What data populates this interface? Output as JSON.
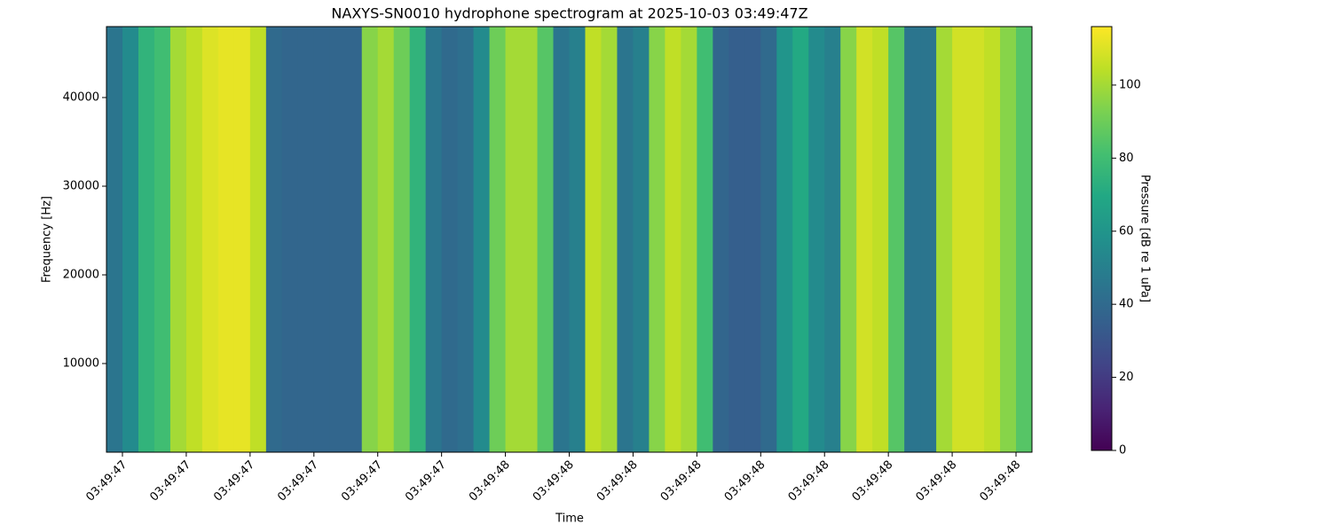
{
  "chart_data": {
    "type": "heatmap",
    "title": "NAXYS-SN0010 hydrophone spectrogram at 2025-10-03 03:49:47Z",
    "xlabel": "Time",
    "ylabel": "Frequency [Hz]",
    "colorbar_label": "Pressure [dB re 1 uPa]",
    "cmap": "viridis",
    "xedges": [
      47.375,
      47.4,
      47.425,
      47.45,
      47.475,
      47.5,
      47.525,
      47.55,
      47.575,
      47.6,
      47.625,
      47.65,
      47.675,
      47.7,
      47.725,
      47.75,
      47.775,
      47.8,
      47.825,
      47.85,
      47.875,
      47.9,
      47.925,
      47.95,
      47.975,
      48.0,
      48.025,
      48.05,
      48.075,
      48.1,
      48.125,
      48.15,
      48.175,
      48.2,
      48.225,
      48.25,
      48.275,
      48.3,
      48.325,
      48.35,
      48.375,
      48.4,
      48.425,
      48.45,
      48.475,
      48.5,
      48.525,
      48.55,
      48.575,
      48.6,
      48.625,
      48.65,
      48.675,
      48.7,
      48.725,
      48.75,
      48.775,
      48.8,
      48.825
    ],
    "yedges": [
      0,
      48000
    ],
    "z": [
      [
        45,
        55,
        75,
        80,
        100,
        105,
        110,
        112,
        112,
        105,
        40,
        38,
        38,
        38,
        38,
        38,
        95,
        100,
        90,
        75,
        45,
        40,
        42,
        55,
        90,
        100,
        100,
        85,
        45,
        50,
        105,
        100,
        45,
        50,
        95,
        105,
        100,
        80,
        38,
        35,
        35,
        40,
        60,
        70,
        55,
        50,
        95,
        108,
        105,
        85,
        45,
        45,
        100,
        108,
        108,
        105,
        95,
        85
      ]
    ],
    "xlim": [
      47.375,
      48.825
    ],
    "xticks": [
      {
        "value": 47.4,
        "label": "03:49:47"
      },
      {
        "value": 47.5,
        "label": "03:49:47"
      },
      {
        "value": 47.6,
        "label": "03:49:47"
      },
      {
        "value": 47.7,
        "label": "03:49:47"
      },
      {
        "value": 47.8,
        "label": "03:49:47"
      },
      {
        "value": 47.9,
        "label": "03:49:47"
      },
      {
        "value": 48.0,
        "label": "03:49:48"
      },
      {
        "value": 48.1,
        "label": "03:49:48"
      },
      {
        "value": 48.2,
        "label": "03:49:48"
      },
      {
        "value": 48.3,
        "label": "03:49:48"
      },
      {
        "value": 48.4,
        "label": "03:49:48"
      },
      {
        "value": 48.5,
        "label": "03:49:48"
      },
      {
        "value": 48.6,
        "label": "03:49:48"
      },
      {
        "value": 48.7,
        "label": "03:49:48"
      },
      {
        "value": 48.8,
        "label": "03:49:48"
      }
    ],
    "ylim": [
      0,
      48000
    ],
    "yticks": [
      10000,
      20000,
      30000,
      40000
    ],
    "clim": [
      0,
      116
    ],
    "cticks": [
      0,
      20,
      40,
      60,
      80,
      100
    ]
  }
}
